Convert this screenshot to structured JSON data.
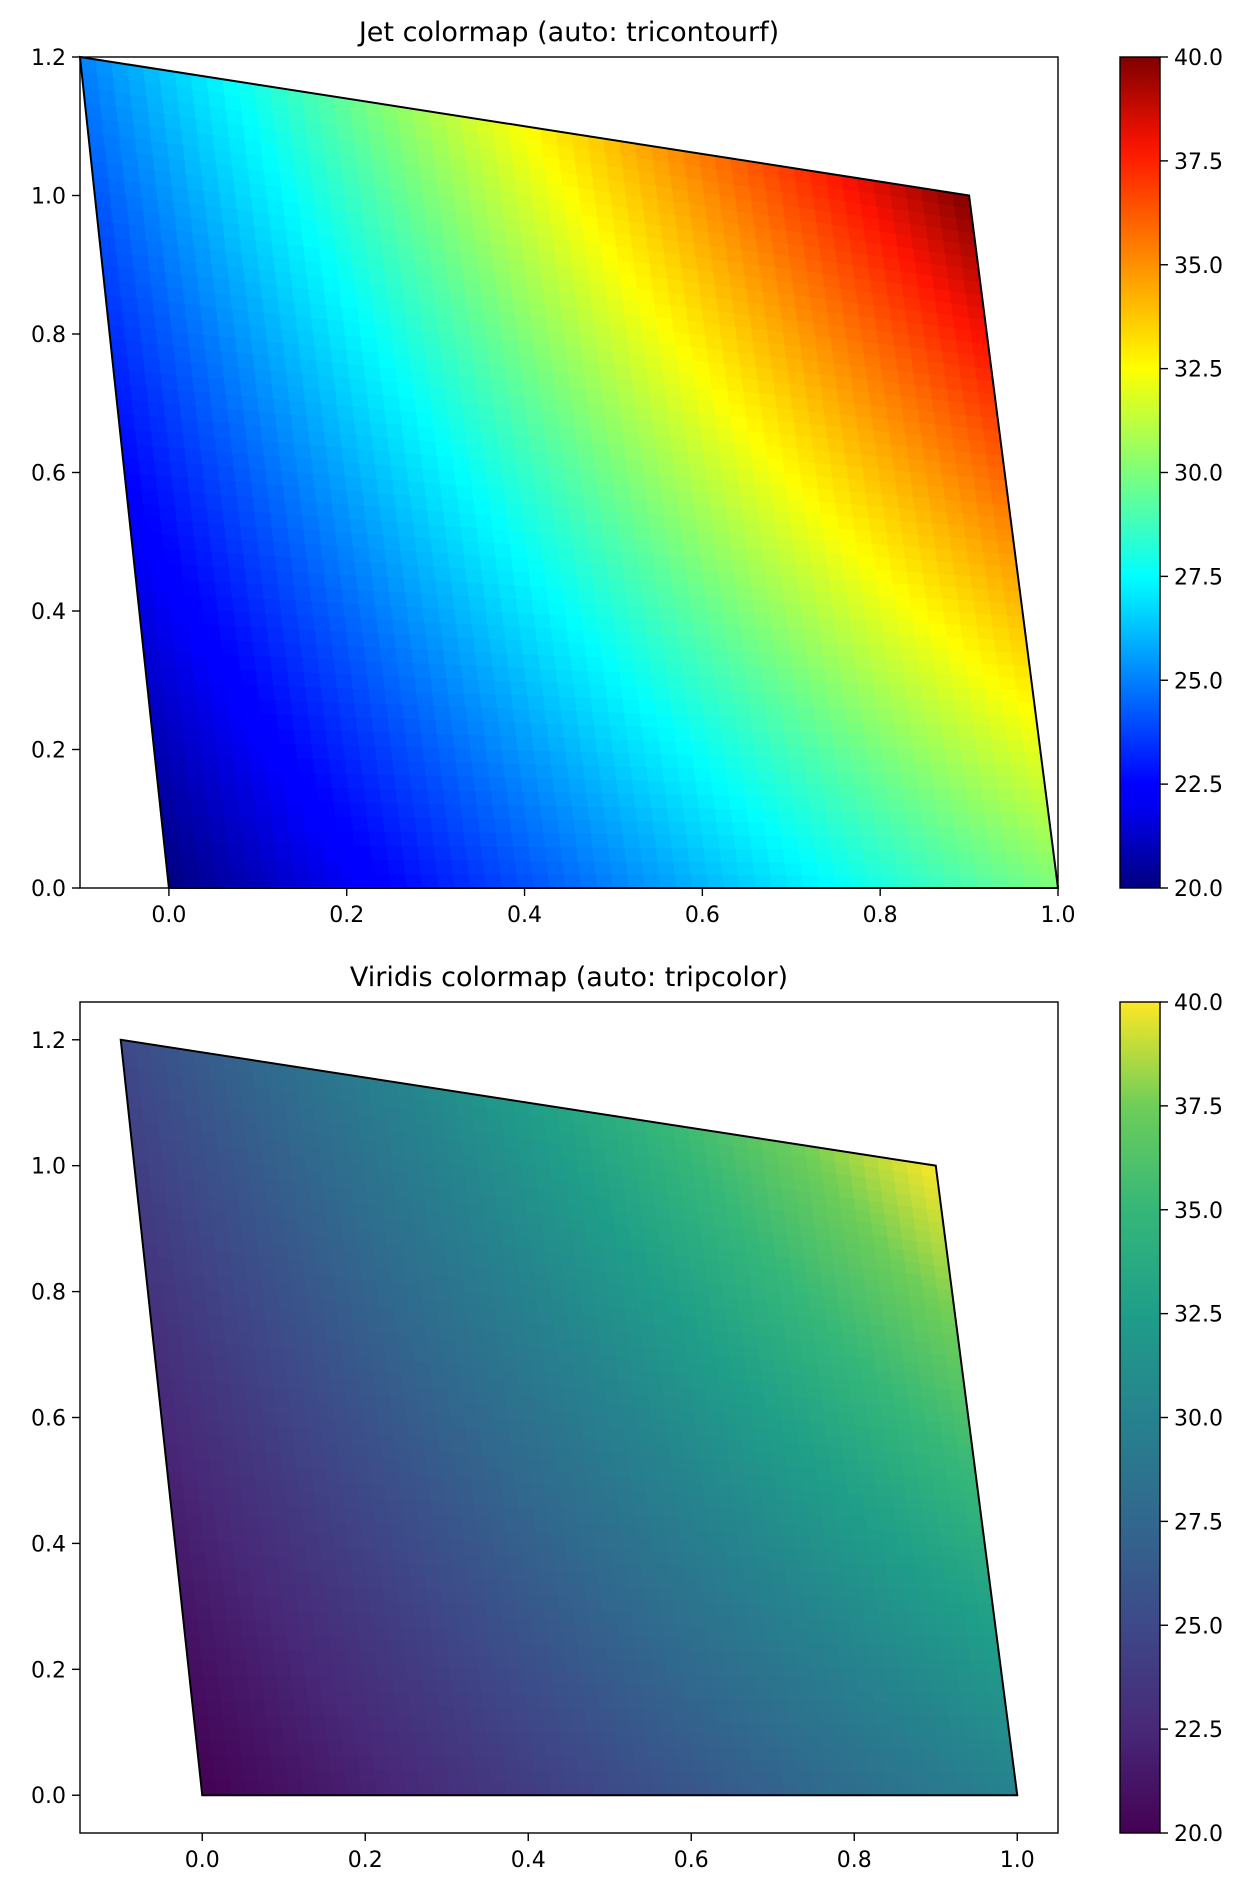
{
  "chart_data": [
    {
      "type": "heatmap",
      "subtype": "tricontourf",
      "title": "Jet colormap (auto: tricontourf)",
      "colormap": "jet",
      "xlabel": "",
      "ylabel": "",
      "xlim": [
        -0.1,
        1.0
      ],
      "ylim": [
        0.0,
        1.2
      ],
      "xticks": [
        "0.0",
        "0.2",
        "0.4",
        "0.6",
        "0.8",
        "1.0"
      ],
      "yticks": [
        "0.0",
        "0.2",
        "0.4",
        "0.6",
        "0.8",
        "1.0",
        "1.2"
      ],
      "colorbar": {
        "min": 20.0,
        "max": 40.0,
        "ticks": [
          "20.0",
          "22.5",
          "25.0",
          "27.5",
          "30.0",
          "32.5",
          "35.0",
          "37.5",
          "40.0"
        ]
      },
      "points": [
        {
          "x": 0.0,
          "y": 0.0,
          "value": 20
        },
        {
          "x": 1.0,
          "y": 0.0,
          "value": 30
        },
        {
          "x": 0.9,
          "y": 1.0,
          "value": 40
        },
        {
          "x": -0.1,
          "y": 1.2,
          "value": 25
        }
      ],
      "grid": false
    },
    {
      "type": "heatmap",
      "subtype": "tripcolor",
      "title": "Viridis colormap (auto: tripcolor)",
      "colormap": "viridis",
      "xlabel": "",
      "ylabel": "",
      "xlim": [
        -0.15,
        1.05
      ],
      "ylim": [
        -0.06,
        1.26
      ],
      "xticks": [
        "0.0",
        "0.2",
        "0.4",
        "0.6",
        "0.8",
        "1.0"
      ],
      "yticks": [
        "0.0",
        "0.2",
        "0.4",
        "0.6",
        "0.8",
        "1.0",
        "1.2"
      ],
      "colorbar": {
        "min": 20.0,
        "max": 40.0,
        "ticks": [
          "20.0",
          "22.5",
          "25.0",
          "27.5",
          "30.0",
          "32.5",
          "35.0",
          "37.5",
          "40.0"
        ]
      },
      "points": [
        {
          "x": 0.0,
          "y": 0.0,
          "value": 20
        },
        {
          "x": 1.0,
          "y": 0.0,
          "value": 30
        },
        {
          "x": 0.9,
          "y": 1.0,
          "value": 40
        },
        {
          "x": -0.1,
          "y": 1.2,
          "value": 25
        }
      ],
      "grid": false
    }
  ]
}
